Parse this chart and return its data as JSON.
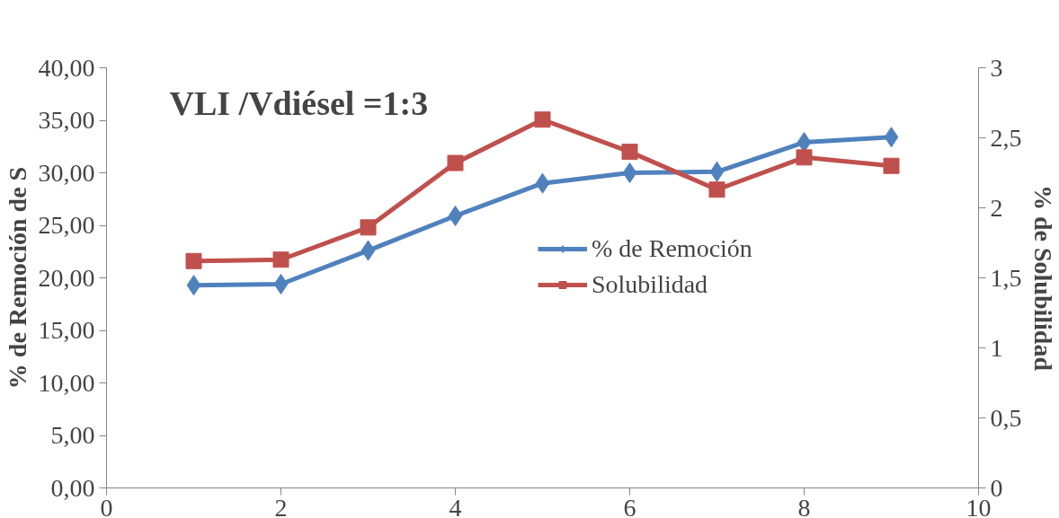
{
  "chart_data": {
    "type": "line",
    "title": "VLI /Vdiésel =1:3",
    "ylabel": "% de Remoción de S",
    "y2label": "% de Solubilidad",
    "x": [
      1,
      2,
      3,
      4,
      5,
      6,
      7,
      8,
      9
    ],
    "series": [
      {
        "name": "% de Remoción",
        "color": "#4f81bd",
        "marker": "diamond",
        "values": [
          19.3,
          19.4,
          22.6,
          25.9,
          29.0,
          30.0,
          30.1,
          32.9,
          33.4
        ]
      },
      {
        "name": "Solubilidad",
        "color": "#c0504d",
        "marker": "square",
        "axis": "y2",
        "values": [
          1.62,
          1.63,
          1.86,
          2.32,
          2.63,
          2.4,
          2.13,
          2.36,
          2.3
        ]
      }
    ],
    "xlim": [
      0,
      10
    ],
    "xticks": [
      0,
      2,
      4,
      6,
      8,
      10
    ],
    "ylim": [
      0,
      40
    ],
    "yticks": [
      {
        "value": 0,
        "label": "0,00"
      },
      {
        "value": 5,
        "label": "5,00"
      },
      {
        "value": 10,
        "label": "10,00"
      },
      {
        "value": 15,
        "label": "15,00"
      },
      {
        "value": 20,
        "label": "20,00"
      },
      {
        "value": 25,
        "label": "25,00"
      },
      {
        "value": 30,
        "label": "30,00"
      },
      {
        "value": 35,
        "label": "35,00"
      },
      {
        "value": 40,
        "label": "40,00"
      }
    ],
    "y2lim": [
      0,
      3
    ],
    "y2ticks": [
      0,
      {
        "value": 0.5,
        "label": "0,5"
      },
      1,
      {
        "value": 1.5,
        "label": "1,5"
      },
      2,
      {
        "value": 2.5,
        "label": "2,5"
      },
      3
    ],
    "grid": false,
    "legend": "right",
    "line_style": "solid"
  }
}
